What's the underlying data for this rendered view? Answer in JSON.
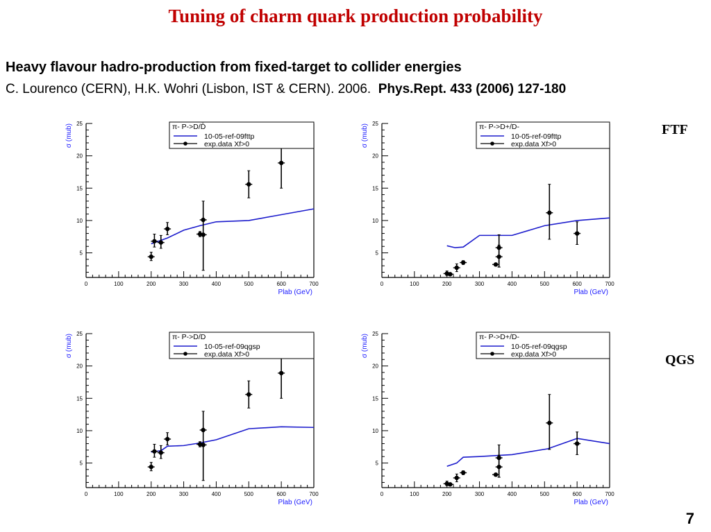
{
  "slide": {
    "title": "Tuning of charm quark production probability",
    "subtitle": "Heavy flavour hadro-production from fixed-target to collider energies",
    "citation_plain": "C. Lourenco (CERN), H.K. Wohri (Lisbon, IST & CERN). 2006.",
    "citation_bold": "Phys.Rept. 433 (2006) 127-180",
    "row_labels": [
      "FTF",
      "QGS"
    ],
    "page_number": "7",
    "colors": {
      "title": "#c00000",
      "model_line": "#1a1acc",
      "data": "#000000",
      "axis_title": "#1a1aff"
    }
  },
  "chart_data": [
    {
      "type": "scatter",
      "title": "π- P->D/D̄",
      "xlabel": "Plab (GeV)",
      "ylabel": "σ (mub)",
      "xlim": [
        0,
        700
      ],
      "ylim": [
        1.2,
        25
      ],
      "xticks": [
        0,
        100,
        200,
        300,
        400,
        500,
        600,
        700
      ],
      "yticks": [
        5,
        10,
        15,
        20,
        25
      ],
      "legend": {
        "placement": "top-right",
        "header": "π- P->D/D̄",
        "entries": [
          "10-05-ref-09fttp",
          "exp.data  Xf>0"
        ]
      },
      "series": [
        {
          "name": "10-05-ref-09fttp",
          "kind": "line",
          "x": [
            200,
            250,
            300,
            350,
            400,
            500,
            600,
            700
          ],
          "y": [
            6.4,
            7.3,
            8.5,
            9.2,
            9.8,
            10.0,
            10.9,
            11.8
          ]
        },
        {
          "name": "exp.data  Xf>0",
          "kind": "errorbar",
          "x": [
            200,
            210,
            230,
            250,
            350,
            360,
            360,
            500,
            600
          ],
          "y": [
            4.4,
            6.8,
            6.6,
            8.7,
            7.9,
            7.8,
            10.1,
            15.6,
            18.9
          ],
          "yerr_low": [
            3.8,
            5.9,
            5.7,
            7.8,
            7.5,
            2.3,
            10.1,
            13.5,
            15.0
          ],
          "yerr_high": [
            5.1,
            7.9,
            7.7,
            9.7,
            8.3,
            13.0,
            10.1,
            17.7,
            22.0
          ]
        }
      ]
    },
    {
      "type": "scatter",
      "title": "π- P->D+/D-",
      "xlabel": "Plab (GeV)",
      "ylabel": "σ (mub)",
      "xlim": [
        0,
        700
      ],
      "ylim": [
        1.2,
        25
      ],
      "xticks": [
        0,
        100,
        200,
        300,
        400,
        500,
        600,
        700
      ],
      "yticks": [
        5,
        10,
        15,
        20,
        25
      ],
      "legend": {
        "placement": "top-right",
        "header": "π- P->D+/D-",
        "entries": [
          "10-05-ref-09fttp",
          "exp.data  Xf>0"
        ]
      },
      "series": [
        {
          "name": "10-05-ref-09fttp",
          "kind": "line",
          "x": [
            200,
            225,
            250,
            300,
            400,
            500,
            600,
            700
          ],
          "y": [
            6.1,
            5.8,
            5.9,
            7.7,
            7.7,
            9.2,
            10.0,
            10.4
          ]
        },
        {
          "name": "exp.data  Xf>0",
          "kind": "errorbar",
          "x": [
            200,
            210,
            230,
            250,
            350,
            360,
            360,
            515,
            600
          ],
          "y": [
            1.8,
            1.7,
            2.7,
            3.5,
            3.2,
            4.4,
            5.8,
            11.2,
            8.0
          ],
          "yerr_low": [
            1.5,
            1.5,
            2.1,
            3.2,
            3.0,
            2.8,
            2.8,
            7.1,
            6.3
          ],
          "yerr_high": [
            2.2,
            1.9,
            3.3,
            3.8,
            3.4,
            6.2,
            7.8,
            15.6,
            9.8
          ]
        }
      ]
    },
    {
      "type": "scatter",
      "title": "π- P->D/D",
      "xlabel": "Plab (GeV)",
      "ylabel": "σ (mub)",
      "xlim": [
        0,
        700
      ],
      "ylim": [
        1.2,
        25
      ],
      "xticks": [
        0,
        100,
        200,
        300,
        400,
        500,
        600,
        700
      ],
      "yticks": [
        5,
        10,
        15,
        20,
        25
      ],
      "legend": {
        "placement": "top-right",
        "header": "π- P->D/D",
        "entries": [
          "10-05-ref-09qgsp",
          "exp.data  Xf>0"
        ]
      },
      "series": [
        {
          "name": "10-05-ref-09qgsp",
          "kind": "line",
          "x": [
            200,
            230,
            250,
            300,
            350,
            400,
            500,
            600,
            700
          ],
          "y": [
            6.7,
            6.9,
            7.6,
            7.7,
            8.1,
            8.6,
            10.3,
            10.6,
            10.5
          ]
        },
        {
          "name": "exp.data  Xf>0",
          "kind": "errorbar",
          "x": [
            200,
            210,
            230,
            250,
            350,
            360,
            360,
            500,
            600
          ],
          "y": [
            4.4,
            6.8,
            6.6,
            8.7,
            7.9,
            7.8,
            10.1,
            15.6,
            18.9
          ],
          "yerr_low": [
            3.8,
            5.9,
            5.7,
            7.8,
            7.5,
            2.3,
            10.1,
            13.5,
            15.0
          ],
          "yerr_high": [
            5.1,
            7.9,
            7.7,
            9.7,
            8.3,
            13.0,
            10.1,
            17.7,
            22.0
          ]
        }
      ]
    },
    {
      "type": "scatter",
      "title": "π- P->D+/D-",
      "xlabel": "Plab (GeV)",
      "ylabel": "σ (mub)",
      "xlim": [
        0,
        700
      ],
      "ylim": [
        1.2,
        25
      ],
      "xticks": [
        0,
        100,
        200,
        300,
        400,
        500,
        600,
        700
      ],
      "yticks": [
        5,
        10,
        15,
        20,
        25
      ],
      "legend": {
        "placement": "top-right",
        "header": "π- P->D+/D-",
        "entries": [
          "10-05-ref-09qgsp",
          "exp.data  Xf>0"
        ]
      },
      "series": [
        {
          "name": "10-05-ref-09qgsp",
          "kind": "line",
          "x": [
            200,
            230,
            250,
            300,
            400,
            510,
            600,
            700
          ],
          "y": [
            4.5,
            5.0,
            5.9,
            6.0,
            6.3,
            7.2,
            8.8,
            8.0
          ]
        },
        {
          "name": "exp.data  Xf>0",
          "kind": "errorbar",
          "x": [
            200,
            210,
            230,
            250,
            350,
            360,
            360,
            515,
            600
          ],
          "y": [
            1.8,
            1.7,
            2.7,
            3.5,
            3.2,
            4.4,
            5.8,
            11.2,
            8.0
          ],
          "yerr_low": [
            1.5,
            1.5,
            2.1,
            3.2,
            3.0,
            2.8,
            2.8,
            7.1,
            6.3
          ],
          "yerr_high": [
            2.2,
            1.9,
            3.3,
            3.8,
            3.4,
            6.2,
            7.8,
            15.6,
            9.8
          ]
        }
      ]
    }
  ]
}
